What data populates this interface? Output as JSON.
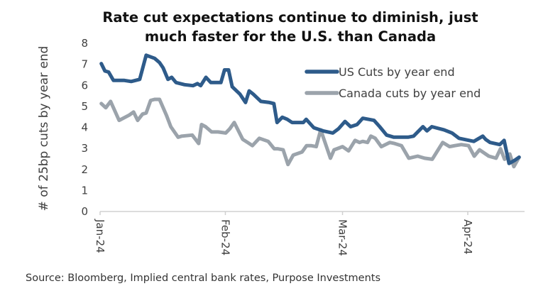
{
  "chart_data": {
    "type": "line",
    "title": [
      "Rate cut expectations continue to diminish, just",
      "much faster for the U.S. than Canada"
    ],
    "xlabel": "",
    "ylabel": "# of 25bp cuts by year end",
    "ylim": [
      0,
      8
    ],
    "yticks": [
      "0",
      "1",
      "2",
      "3",
      "4",
      "5",
      "6",
      "7",
      "8"
    ],
    "xlim_days": [
      0,
      104
    ],
    "xticks": [
      {
        "label": "Jan-24",
        "day": 0
      },
      {
        "label": "Feb-24",
        "day": 31
      },
      {
        "label": "Mar-24",
        "day": 60
      },
      {
        "label": "Apr-24",
        "day": 91
      }
    ],
    "grid": false,
    "legend_position": "top-right",
    "source": "Source: Bloomberg, Implied central bank rates, Purpose Investments",
    "series": [
      {
        "name": "US Cuts by year end",
        "color": "#2e5b8a",
        "x": [
          0.3,
          1.2,
          2.1,
          3.3,
          6,
          7.7,
          9.8,
          11.4,
          13.5,
          14.7,
          15.6,
          16.8,
          17.7,
          18.8,
          20.9,
          23,
          24.1,
          24.9,
          26.2,
          27.4,
          28.5,
          29.9,
          30.8,
          31.8,
          32.7,
          34.6,
          36,
          36.9,
          37.9,
          39.8,
          41.9,
          43,
          43.8,
          45.1,
          46.3,
          47.5,
          50.3,
          51,
          52.9,
          55.2,
          57.6,
          59,
          60.6,
          62,
          63.6,
          65,
          67.8,
          69.2,
          70.9,
          72.7,
          76.2,
          77.6,
          79.9,
          80.9,
          82.1,
          85.1,
          87.1,
          88.8,
          92.5,
          94.7,
          95.4,
          96.5,
          98.9,
          100,
          101.2,
          102.6,
          103.7
        ],
        "values": [
          7.0,
          6.65,
          6.6,
          6.2,
          6.2,
          6.15,
          6.25,
          7.4,
          7.25,
          7.05,
          6.8,
          6.25,
          6.35,
          6.1,
          6.0,
          5.95,
          6.05,
          5.95,
          6.35,
          6.1,
          6.1,
          6.1,
          6.7,
          6.7,
          5.9,
          5.55,
          5.15,
          5.7,
          5.55,
          5.2,
          5.15,
          5.1,
          4.2,
          4.45,
          4.35,
          4.2,
          4.2,
          4.35,
          3.95,
          3.8,
          3.7,
          3.9,
          4.25,
          4.0,
          4.1,
          4.4,
          4.3,
          4.0,
          3.6,
          3.5,
          3.5,
          3.55,
          4.0,
          3.8,
          4.0,
          3.85,
          3.7,
          3.45,
          3.3,
          3.55,
          3.4,
          3.25,
          3.15,
          3.35,
          2.25,
          2.4,
          2.55
        ]
      },
      {
        "name": "Canada cuts by year end",
        "color": "#9ba3ab",
        "x": [
          0.3,
          1.4,
          2.6,
          4.7,
          7.2,
          8.3,
          9.3,
          10.5,
          11.4,
          12.5,
          13.5,
          14.7,
          16.4,
          17.5,
          19.3,
          20.2,
          22.8,
          24.4,
          25.1,
          26.1,
          27.6,
          29.2,
          31.1,
          32.1,
          33.2,
          35.3,
          36.5,
          37.7,
          39.4,
          41.6,
          43.1,
          43.9,
          45.3,
          46.5,
          47.8,
          50,
          51.1,
          52.2,
          53.5,
          54.6,
          57,
          57.9,
          59.3,
          60,
          61.5,
          63.1,
          64.2,
          65,
          66.2,
          67,
          68.1,
          69.6,
          71.7,
          72.9,
          74.6,
          76.4,
          78.6,
          80.3,
          82.2,
          84.8,
          86.5,
          87.8,
          89.4,
          91.2,
          92.6,
          93.9,
          96.2,
          98,
          99.1,
          100.1,
          101.4,
          102.4,
          103.7
        ],
        "values": [
          5.1,
          4.9,
          5.2,
          4.3,
          4.55,
          4.7,
          4.3,
          4.6,
          4.65,
          5.25,
          5.3,
          5.3,
          4.55,
          4.0,
          3.5,
          3.55,
          3.6,
          3.2,
          4.1,
          4.0,
          3.75,
          3.75,
          3.7,
          3.9,
          4.2,
          3.4,
          3.25,
          3.1,
          3.45,
          3.3,
          2.95,
          2.95,
          2.9,
          2.2,
          2.65,
          2.8,
          3.1,
          3.1,
          3.05,
          3.85,
          2.5,
          2.9,
          3.0,
          3.05,
          2.85,
          3.35,
          3.25,
          3.3,
          3.25,
          3.55,
          3.45,
          3.05,
          3.25,
          3.2,
          3.1,
          2.5,
          2.6,
          2.5,
          2.45,
          3.25,
          3.05,
          3.1,
          3.15,
          3.1,
          2.6,
          2.9,
          2.6,
          2.5,
          2.95,
          2.45,
          2.7,
          2.1,
          2.55
        ]
      }
    ]
  }
}
